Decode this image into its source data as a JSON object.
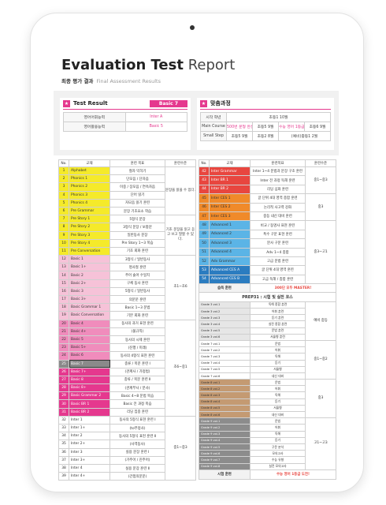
{
  "header": {
    "title_bold": "Evaluation Test",
    "title_light": "Report",
    "subtitle_ko": "최종 평가 결과",
    "subtitle_en": "Final Assessment Results"
  },
  "test_result": {
    "title": "Test Result",
    "badge": "Basic 7",
    "rows": [
      {
        "label": "영어어휘능력",
        "value": "Inter A"
      },
      {
        "label": "영어활용능력",
        "value": "Basic 5"
      }
    ]
  },
  "course": {
    "title": "맞춤과정",
    "rows": [
      {
        "label": "시작 학년",
        "cells": [
          {
            "text": "초등1 10월"
          }
        ]
      },
      {
        "label": "Main Course",
        "cells": [
          {
            "text": "500번 문형 완성",
            "accent": true
          },
          {
            "text": "초등5 9월"
          },
          {
            "text": "수능 영어 1등급",
            "accent": true
          },
          {
            "text": "초등6 9월"
          }
        ]
      },
      {
        "label": "Small Step",
        "cells": [
          {
            "text": "초등5 9월"
          },
          {
            "text": "초등2 8월"
          },
          {
            "text": "(예비)중등1 2월"
          }
        ]
      }
    ]
  },
  "left_table": {
    "headers": [
      "No.",
      "교재",
      "훈련 목표",
      "훈련수준"
    ],
    "groups": [
      {
        "level": "문장을 읽을 수 있다.",
        "blocks": [
          {
            "color": "#f5ea2a",
            "rows": [
              [
                1,
                "Alphabet",
                "철자 익히기"
              ],
              [
                2,
                "Phonics 1",
                "단모음 / 단자음"
              ],
              [
                3,
                "Phonics 2",
                "이중 / 장모음 / 연속자음"
              ],
              [
                4,
                "Phonics 3",
                "단어 읽기"
              ],
              [
                5,
                "Phonics 4",
                "자모음 읽기 훈련"
              ],
              [
                6,
                "Pre Grammar",
                "문장 기초요소 학습"
              ]
            ]
          }
        ]
      },
      {
        "level": "기초 문장을 읽고 듣고 쓰고 말할 수 있다.",
        "blocks": [
          {
            "color": "#f5ea2a",
            "rows": [
              [
                7,
                "Pre Story 1",
                "5형식 문장"
              ],
              [
                8,
                "Pre Story 2",
                "3형식 문장 / 보충문"
              ],
              [
                9,
                "Pre Story 3",
                "일반동사 문장"
              ],
              [
                10,
                "Pre Story 4",
                "Pre Story 1~3 복습"
              ],
              [
                11,
                "Pre Conversation",
                "기초 회화 훈련"
              ]
            ]
          }
        ]
      },
      {
        "level": "초1~초6",
        "blocks": [
          {
            "color": "#f6c2d8",
            "rows": [
              [
                12,
                "Basic 1",
                "3형식 / 일반동사"
              ],
              [
                13,
                "Basic 1+",
                "명사절 훈련"
              ],
              [
                14,
                "Basic 2",
                "주어 술어 수일치"
              ],
              [
                15,
                "Basic 2+",
                "구체 동사 훈련"
              ],
              [
                16,
                "Basic 3",
                "5형식 / 일반동사"
              ],
              [
                17,
                "Basic 3+",
                "의문문 훈련"
              ],
              [
                18,
                "Basic Grammar 1",
                "Basic 1~3 문법"
              ],
              [
                19,
                "Basic Conversation",
                "기본 회화 훈련"
              ]
            ]
          }
        ]
      },
      {
        "level": "초6~중1",
        "blocks": [
          {
            "color": "#f08cbc",
            "rows": [
              [
                20,
                "Basic 4",
                "동사의 과거 표현 훈련"
              ],
              [
                21,
                "Basic 4+",
                "(불규칙)"
              ],
              [
                22,
                "Basic 5",
                "동사의 시제 훈련"
              ],
              [
                23,
                "Basic 5+",
                "(진행 / 미래)"
              ],
              [
                24,
                "Basic 6",
                "동사의 4형식 표현 훈련"
              ]
            ]
          },
          {
            "color": "#e5388e",
            "rows": [
              [
                25,
                "Basic 7",
                "종류 / 복문 훈련 Ⅰ"
              ],
              [
                26,
                "Basic 7+",
                "(관계사 / 가정법)"
              ],
              [
                27,
                "Basic 8",
                "종류 / 복문 훈련 Ⅱ"
              ],
              [
                28,
                "Basic 8+",
                "(관계부사 / 분사)"
              ],
              [
                29,
                "Basic Grammar 2",
                "Basic 4~8 문법 복습"
              ],
              [
                30,
                "Basic BR 1",
                "Basic 전 과정 복습"
              ],
              [
                31,
                "Basic BR 2",
                "리딩 집중 훈련"
              ]
            ]
          }
        ]
      },
      {
        "level": "중1~중3",
        "blocks": [
          {
            "color": "#ffffff",
            "rows": [
              [
                32,
                "Inter 1",
                "동사의 5형식 표현 훈련 Ⅰ"
              ],
              [
                33,
                "Inter 1+",
                "(to부정사)"
              ],
              [
                34,
                "Inter 2",
                "동사의 5형식 표현 훈련 Ⅱ"
              ],
              [
                35,
                "Inter 2+",
                "(사역동사)"
              ],
              [
                36,
                "Inter 3",
                "실용 문장 훈련 Ⅰ"
              ],
              [
                37,
                "Inter 3+",
                "(가주어 / 진주어)"
              ],
              [
                38,
                "Inter 4",
                "실용 문장 훈련 Ⅱ"
              ],
              [
                39,
                "Inter 4+",
                "(간접의문문)"
              ]
            ]
          }
        ]
      }
    ]
  },
  "right_table": {
    "headers": [
      "No.",
      "교재",
      "훈련목표",
      "훈련수준"
    ],
    "groups": [
      {
        "level": "중1~중3",
        "blocks": [
          {
            "color": "#e8463f",
            "rows": [
              [
                42,
                "Inter Grammar",
                "Inter 1~4 문법과 문장 구조 훈련"
              ],
              [
                43,
                "Inter BR 1",
                "Inter 전 과정 독해 훈련"
              ],
              [
                44,
                "Inter BR 2",
                "리딩 심화 훈련"
              ]
            ]
          }
        ]
      },
      {
        "level": "중3",
        "blocks": [
          {
            "color": "#f08a2a",
            "rows": [
              [
                45,
                "Inter CES 1",
                "글 단위 4대 영역 종합 훈련"
              ],
              [
                46,
                "Inter CES 2",
                "논리적 사고력 강화"
              ],
              [
                47,
                "Inter CES 3",
                "중등 내신 대비 훈련"
              ]
            ]
          }
        ]
      },
      {
        "level": "중3~고1",
        "blocks": [
          {
            "color": "#5bb4e6",
            "rows": [
              [
                48,
                "Advanced 1",
                "비교 / 동명사 표현 훈련"
              ],
              [
                49,
                "Advanced 2",
                "특수 구문 표현 훈련"
              ],
              [
                50,
                "Advanced 3",
                "분사 구문 훈련"
              ],
              [
                51,
                "Advanced 4",
                "Adv 1~4 종합"
              ],
              [
                52,
                "Adv Grammar",
                "고급 문법 훈련"
              ]
            ]
          },
          {
            "color": "#2b7cc0",
            "rows": [
              [
                53,
                "Advanced CES A",
                "글 단위 4대 영역 훈련"
              ],
              [
                54,
                "Advanced CES B",
                "고급 독해 / 종합 훈련"
              ]
            ]
          }
        ]
      }
    ],
    "mastery": {
      "label": "습득 훈련",
      "text": "300단 모두 MASTER!"
    },
    "prep_title": "PREP31 : 시험 및 실전 코스",
    "prep_groups": [
      {
        "level": "예비 중등",
        "color": "#e6e6e6",
        "rows": [
          [
            "Grade 3 vol.1",
            "독해 종합 훈련"
          ],
          [
            "Grade 3 vol.2",
            "어휘 훈련"
          ],
          [
            "Grade 3 vol.3",
            "듣기 훈련"
          ],
          [
            "Grade 3 vol.4",
            "실전 종합 훈련"
          ],
          [
            "Grade 3 vol.5",
            "문법 훈련"
          ],
          [
            "Grade 3 vol.6",
            "서술형 훈련"
          ]
        ]
      },
      {
        "level": "중1~중2",
        "color": "#ffffff",
        "rows": [
          [
            "Grade 7 vol.1",
            "문법"
          ],
          [
            "Grade 7 vol.2",
            "어휘"
          ],
          [
            "Grade 7 vol.3",
            "독해"
          ],
          [
            "Grade 7 vol.4",
            "듣기"
          ],
          [
            "Grade 7 vol.5",
            "서술형"
          ],
          [
            "Grade 7 vol.6",
            "내신 대비"
          ]
        ]
      },
      {
        "level": "중3",
        "color": "#c49a72",
        "rows": [
          [
            "Grade 8 vol.1",
            "문법"
          ],
          [
            "Grade 8 vol.2",
            "어휘"
          ],
          [
            "Grade 8 vol.3",
            "독해"
          ],
          [
            "Grade 8 vol.4",
            "듣기"
          ],
          [
            "Grade 8 vol.5",
            "서술형"
          ],
          [
            "Grade 8 vol.6",
            "내신 대비"
          ]
        ]
      },
      {
        "level": "고1~고3",
        "color": "#8c8c8c",
        "rows": [
          [
            "Grade 9 vol.1",
            "문법"
          ],
          [
            "Grade 9 vol.2",
            "어휘"
          ],
          [
            "Grade 9 vol.3",
            "독해"
          ],
          [
            "Grade 9 vol.4",
            "듣기"
          ],
          [
            "Grade 9 vol.5",
            "구문 분석"
          ],
          [
            "Grade 9 vol.6",
            "모의고사"
          ],
          [
            "Grade 9 vol.7",
            "수능 유형"
          ],
          [
            "Grade 9 vol.8",
            "실전 모의고사"
          ]
        ]
      }
    ],
    "final": {
      "label": "시험 훈련",
      "text": "수능 영어 1등급 도전!"
    }
  }
}
